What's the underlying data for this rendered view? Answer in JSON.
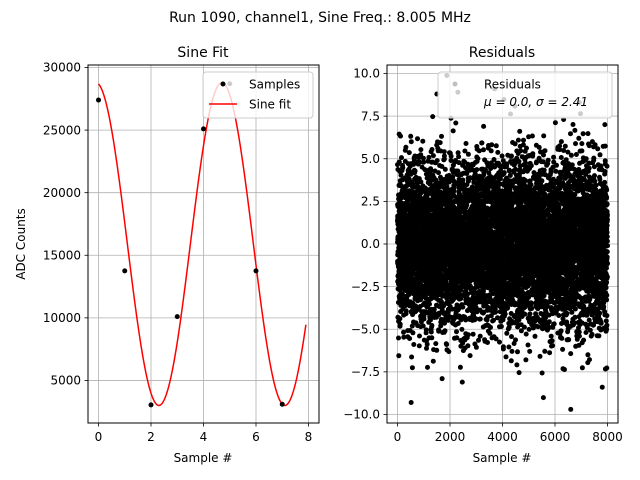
{
  "chart_data": {
    "suptitle": "Run 1090, channel1, Sine Freq.: 8.005 MHz",
    "panels": [
      {
        "type": "line",
        "title": "Sine Fit",
        "xlabel": "Sample #",
        "ylabel": "ADC Counts",
        "xlim": [
          -0.4,
          8.4
        ],
        "ylim": [
          1600,
          30200
        ],
        "xticks": [
          0,
          2,
          4,
          6,
          8
        ],
        "xtick_labels": [
          "0",
          "2",
          "4",
          "6",
          "8"
        ],
        "yticks": [
          5000,
          10000,
          15000,
          20000,
          25000,
          30000
        ],
        "ytick_labels": [
          "5000",
          "10000",
          "15000",
          "20000",
          "25000",
          "30000"
        ],
        "grid": true,
        "legend": {
          "location": "upper right",
          "entries": [
            "Samples",
            "Sine fit"
          ]
        },
        "series": [
          {
            "name": "Samples",
            "kind": "scatter",
            "color": "#000000",
            "x": [
              0,
              1,
              2,
              3,
              4,
              5,
              6,
              7
            ],
            "y": [
              27400,
              13750,
              3050,
              10100,
              25100,
              28700,
              13750,
              3100
            ]
          },
          {
            "name": "Sine fit",
            "kind": "line",
            "color": "#ff0000",
            "model": {
              "amplitude": 12900,
              "offset": 15900,
              "period": 4.8,
              "peak_x": 4.7,
              "x_range": [
                0,
                7.9
              ]
            }
          }
        ]
      },
      {
        "type": "scatter",
        "title": "Residuals",
        "xlabel": "Sample #",
        "ylabel": "",
        "xlim": [
          -400,
          8400
        ],
        "ylim": [
          -10.5,
          10.5
        ],
        "xticks": [
          0,
          2000,
          4000,
          6000,
          8000
        ],
        "xtick_labels": [
          "0",
          "2000",
          "4000",
          "6000",
          "8000"
        ],
        "yticks": [
          -10,
          -7.5,
          -5,
          -2.5,
          0,
          2.5,
          5,
          7.5,
          10
        ],
        "ytick_labels": [
          "−10.0",
          "−7.5",
          "−5.0",
          "−2.5",
          "0.0",
          "2.5",
          "5.0",
          "7.5",
          "10.0"
        ],
        "grid": true,
        "legend": {
          "location": "upper right",
          "entries": [
            "Residuals"
          ],
          "stats_line": "μ = 0.0, σ = 2.41",
          "mu_label": "μ = 0.0, ",
          "sigma_label": "σ = 2.41"
        },
        "series": [
          {
            "name": "Residuals",
            "kind": "scatter",
            "color": "#000000",
            "n_points": 8000,
            "mean": 0.0,
            "std": 2.41,
            "x_range": [
              0,
              8000
            ],
            "seed": 1090,
            "outliers": [
              {
                "x": 520,
                "y": -9.3
              },
              {
                "x": 6600,
                "y": -9.7
              },
              {
                "x": 2300,
                "y": 8.9
              },
              {
                "x": 3700,
                "y": 9.1
              },
              {
                "x": 1500,
                "y": 8.8
              },
              {
                "x": 1700,
                "y": -7.9
              },
              {
                "x": 7800,
                "y": -8.4
              },
              {
                "x": 7900,
                "y": 7.0
              }
            ]
          }
        ]
      }
    ]
  }
}
